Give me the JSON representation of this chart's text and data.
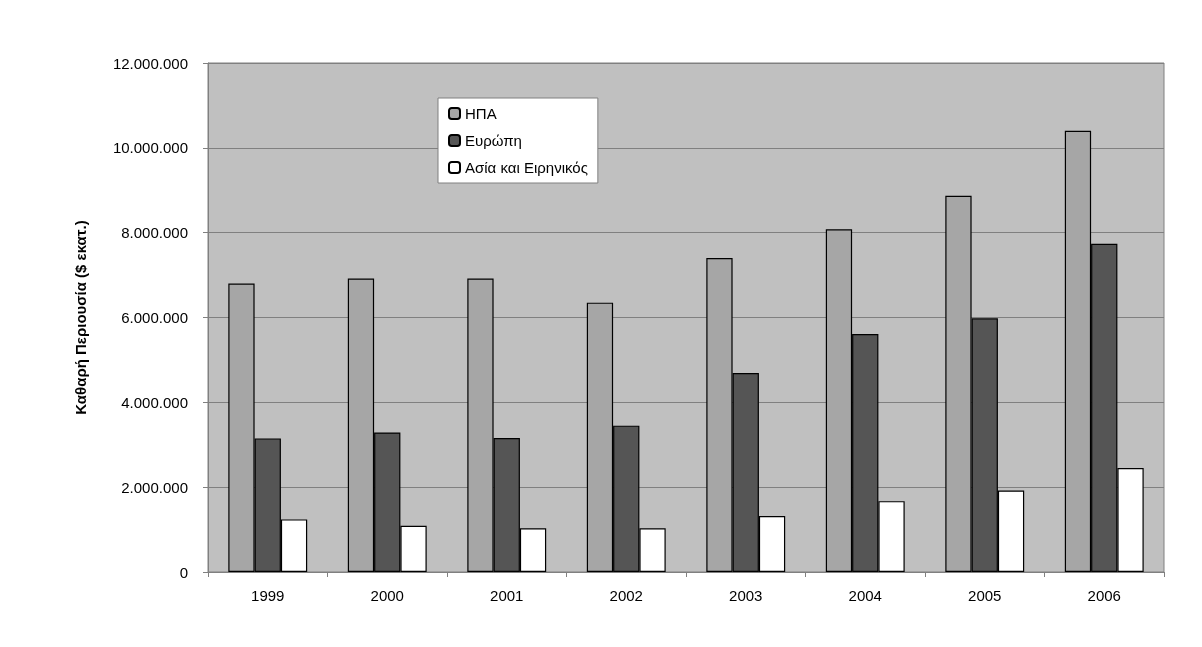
{
  "chart_data": {
    "type": "bar",
    "ylabel": "Καθαρή Περιουσία ($ εκατ.)",
    "categories": [
      "1999",
      "2000",
      "2001",
      "2002",
      "2003",
      "2004",
      "2005",
      "2006"
    ],
    "series": [
      {
        "name": "ΗΠΑ",
        "color": "#a6a6a6",
        "values": [
          6800000,
          6920000,
          6920000,
          6350000,
          7400000,
          8080000,
          8870000,
          10400000
        ]
      },
      {
        "name": "Ευρώπη",
        "color": "#555555",
        "values": [
          3150000,
          3290000,
          3160000,
          3450000,
          4690000,
          5610000,
          5980000,
          7740000
        ]
      },
      {
        "name": "Ασία και Ειρηνικός",
        "color": "#ffffff",
        "values": [
          1240000,
          1090000,
          1030000,
          1030000,
          1320000,
          1670000,
          1920000,
          2450000
        ]
      }
    ],
    "ylim": [
      0,
      12000000
    ],
    "yticks": [
      0,
      {
        "value": 2000000,
        "label": "2.000.000"
      },
      {
        "value": 4000000,
        "label": "4.000.000"
      },
      {
        "value": 6000000,
        "label": "6.000.000"
      },
      {
        "value": 8000000,
        "label": "8.000.000"
      },
      {
        "value": 10000000,
        "label": "10.000.000"
      },
      {
        "value": 12000000,
        "label": "12.000.000"
      }
    ],
    "grid": "y",
    "legend": "top"
  }
}
